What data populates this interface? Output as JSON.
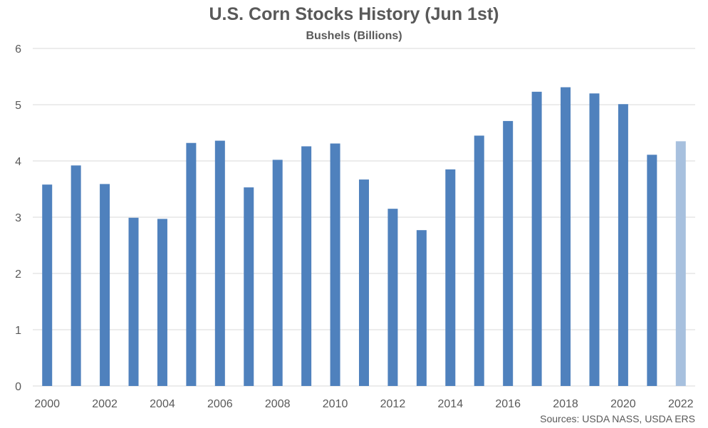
{
  "chart_data": {
    "type": "bar",
    "title": "U.S. Corn Stocks History (Jun 1st)",
    "subtitle": "Bushels (Billions)",
    "source": "Sources: USDA NASS, USDA ERS",
    "categories": [
      "2000",
      "2001",
      "2002",
      "2003",
      "2004",
      "2005",
      "2006",
      "2007",
      "2008",
      "2009",
      "2010",
      "2011",
      "2012",
      "2013",
      "2014",
      "2015",
      "2016",
      "2017",
      "2018",
      "2019",
      "2020",
      "2021",
      "2022"
    ],
    "values": [
      3.58,
      3.92,
      3.59,
      2.99,
      2.97,
      4.32,
      4.36,
      3.53,
      4.02,
      4.26,
      4.31,
      3.67,
      3.15,
      2.77,
      3.85,
      4.45,
      4.71,
      5.23,
      5.31,
      5.2,
      5.01,
      4.11,
      4.35
    ],
    "x_tick_labels": [
      "2000",
      "2002",
      "2004",
      "2006",
      "2008",
      "2010",
      "2012",
      "2014",
      "2016",
      "2018",
      "2020",
      "2022"
    ],
    "y_ticks": [
      0,
      1,
      2,
      3,
      4,
      5,
      6
    ],
    "ylim": [
      0,
      6
    ],
    "grid": true,
    "legend": "none",
    "colors": {
      "bar": "#4f81bd",
      "highlight_bar": "#a7c0de",
      "grid": "#d9d9d9",
      "text": "#595959"
    },
    "highlight_category": "2022"
  }
}
